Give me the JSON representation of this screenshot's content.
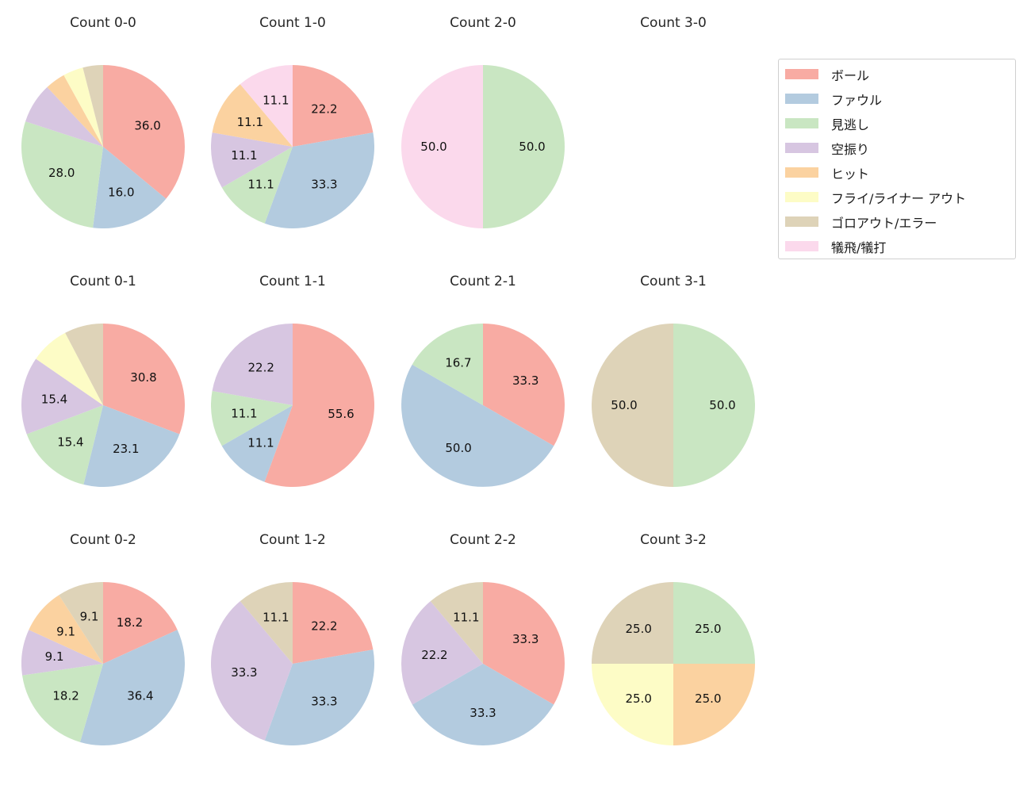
{
  "figure": {
    "background": "#ffffff"
  },
  "legend": {
    "position": "top-right",
    "items": [
      {
        "label": "ボール",
        "color": "#f8aba3"
      },
      {
        "label": "ファウル",
        "color": "#b3cbdf"
      },
      {
        "label": "見逃し",
        "color": "#c9e6c2"
      },
      {
        "label": "空振り",
        "color": "#d7c6e1"
      },
      {
        "label": "ヒット",
        "color": "#fbd2a0"
      },
      {
        "label": "フライ/ライナー アウト",
        "color": "#fdfcc6"
      },
      {
        "label": "ゴロアウト/エラー",
        "color": "#ded3b8"
      },
      {
        "label": "犠飛/犠打",
        "color": "#fbd9ec"
      }
    ]
  },
  "chart_data": [
    {
      "type": "pie",
      "title": "Count 0-0",
      "start_angle_deg": 90,
      "direction": "clockwise",
      "value_format": "percent",
      "slices": [
        {
          "category": "ボール",
          "value": 36.0,
          "label": "36.0",
          "color": "#f8aba3"
        },
        {
          "category": "ファウル",
          "value": 16.0,
          "label": "16.0",
          "color": "#b3cbdf"
        },
        {
          "category": "見逃し",
          "value": 28.0,
          "label": "28.0",
          "color": "#c9e6c2"
        },
        {
          "category": "空振り",
          "value": 8.0,
          "label": null,
          "color": "#d7c6e1"
        },
        {
          "category": "ヒット",
          "value": 4.0,
          "label": null,
          "color": "#fbd2a0"
        },
        {
          "category": "フライ/ライナー アウト",
          "value": 4.0,
          "label": null,
          "color": "#fdfcc6"
        },
        {
          "category": "ゴロアウト/エラー",
          "value": 4.0,
          "label": null,
          "color": "#ded3b8"
        }
      ]
    },
    {
      "type": "pie",
      "title": "Count 1-0",
      "start_angle_deg": 90,
      "direction": "clockwise",
      "value_format": "percent",
      "slices": [
        {
          "category": "ボール",
          "value": 22.2,
          "label": "22.2",
          "color": "#f8aba3"
        },
        {
          "category": "ファウル",
          "value": 33.3,
          "label": "33.3",
          "color": "#b3cbdf"
        },
        {
          "category": "見逃し",
          "value": 11.1,
          "label": "11.1",
          "color": "#c9e6c2"
        },
        {
          "category": "空振り",
          "value": 11.1,
          "label": "11.1",
          "color": "#d7c6e1"
        },
        {
          "category": "ヒット",
          "value": 11.1,
          "label": "11.1",
          "color": "#fbd2a0"
        },
        {
          "category": "犠飛/犠打",
          "value": 11.1,
          "label": "11.1",
          "color": "#fbd9ec"
        }
      ]
    },
    {
      "type": "pie",
      "title": "Count 2-0",
      "start_angle_deg": 90,
      "direction": "clockwise",
      "value_format": "percent",
      "slices": [
        {
          "category": "見逃し",
          "value": 50.0,
          "label": "50.0",
          "color": "#c9e6c2"
        },
        {
          "category": "犠飛/犠打",
          "value": 50.0,
          "label": "50.0",
          "color": "#fbd9ec"
        }
      ]
    },
    {
      "type": "pie",
      "title": "Count 3-0",
      "start_angle_deg": 90,
      "direction": "clockwise",
      "value_format": "percent",
      "slices": []
    },
    {
      "type": "pie",
      "title": "Count 0-1",
      "start_angle_deg": 90,
      "direction": "clockwise",
      "value_format": "percent",
      "slices": [
        {
          "category": "ボール",
          "value": 30.8,
          "label": "30.8",
          "color": "#f8aba3"
        },
        {
          "category": "ファウル",
          "value": 23.1,
          "label": "23.1",
          "color": "#b3cbdf"
        },
        {
          "category": "見逃し",
          "value": 15.4,
          "label": "15.4",
          "color": "#c9e6c2"
        },
        {
          "category": "空振り",
          "value": 15.4,
          "label": "15.4",
          "color": "#d7c6e1"
        },
        {
          "category": "フライ/ライナー アウト",
          "value": 7.7,
          "label": null,
          "color": "#fdfcc6"
        },
        {
          "category": "ゴロアウト/エラー",
          "value": 7.7,
          "label": null,
          "color": "#ded3b8"
        }
      ]
    },
    {
      "type": "pie",
      "title": "Count 1-1",
      "start_angle_deg": 90,
      "direction": "clockwise",
      "value_format": "percent",
      "slices": [
        {
          "category": "ボール",
          "value": 55.6,
          "label": "55.6",
          "color": "#f8aba3"
        },
        {
          "category": "ファウル",
          "value": 11.1,
          "label": "11.1",
          "color": "#b3cbdf"
        },
        {
          "category": "見逃し",
          "value": 11.1,
          "label": "11.1",
          "color": "#c9e6c2"
        },
        {
          "category": "空振り",
          "value": 22.2,
          "label": "22.2",
          "color": "#d7c6e1"
        }
      ]
    },
    {
      "type": "pie",
      "title": "Count 2-1",
      "start_angle_deg": 90,
      "direction": "clockwise",
      "value_format": "percent",
      "slices": [
        {
          "category": "ボール",
          "value": 33.3,
          "label": "33.3",
          "color": "#f8aba3"
        },
        {
          "category": "ファウル",
          "value": 50.0,
          "label": "50.0",
          "color": "#b3cbdf"
        },
        {
          "category": "見逃し",
          "value": 16.7,
          "label": "16.7",
          "color": "#c9e6c2"
        }
      ]
    },
    {
      "type": "pie",
      "title": "Count 3-1",
      "start_angle_deg": 90,
      "direction": "clockwise",
      "value_format": "percent",
      "slices": [
        {
          "category": "見逃し",
          "value": 50.0,
          "label": "50.0",
          "color": "#c9e6c2"
        },
        {
          "category": "ゴロアウト/エラー",
          "value": 50.0,
          "label": "50.0",
          "color": "#ded3b8"
        }
      ]
    },
    {
      "type": "pie",
      "title": "Count 0-2",
      "start_angle_deg": 90,
      "direction": "clockwise",
      "value_format": "percent",
      "slices": [
        {
          "category": "ボール",
          "value": 18.2,
          "label": "18.2",
          "color": "#f8aba3"
        },
        {
          "category": "ファウル",
          "value": 36.4,
          "label": "36.4",
          "color": "#b3cbdf"
        },
        {
          "category": "見逃し",
          "value": 18.2,
          "label": "18.2",
          "color": "#c9e6c2"
        },
        {
          "category": "空振り",
          "value": 9.1,
          "label": "9.1",
          "color": "#d7c6e1"
        },
        {
          "category": "ヒット",
          "value": 9.1,
          "label": "9.1",
          "color": "#fbd2a0"
        },
        {
          "category": "ゴロアウト/エラー",
          "value": 9.1,
          "label": "9.1",
          "color": "#ded3b8"
        }
      ]
    },
    {
      "type": "pie",
      "title": "Count 1-2",
      "start_angle_deg": 90,
      "direction": "clockwise",
      "value_format": "percent",
      "slices": [
        {
          "category": "ボール",
          "value": 22.2,
          "label": "22.2",
          "color": "#f8aba3"
        },
        {
          "category": "ファウル",
          "value": 33.3,
          "label": "33.3",
          "color": "#b3cbdf"
        },
        {
          "category": "空振り",
          "value": 33.3,
          "label": "33.3",
          "color": "#d7c6e1"
        },
        {
          "category": "ゴロアウト/エラー",
          "value": 11.1,
          "label": "11.1",
          "color": "#ded3b8"
        }
      ]
    },
    {
      "type": "pie",
      "title": "Count 2-2",
      "start_angle_deg": 90,
      "direction": "clockwise",
      "value_format": "percent",
      "slices": [
        {
          "category": "ボール",
          "value": 33.3,
          "label": "33.3",
          "color": "#f8aba3"
        },
        {
          "category": "ファウル",
          "value": 33.3,
          "label": "33.3",
          "color": "#b3cbdf"
        },
        {
          "category": "空振り",
          "value": 22.2,
          "label": "22.2",
          "color": "#d7c6e1"
        },
        {
          "category": "ゴロアウト/エラー",
          "value": 11.1,
          "label": "11.1",
          "color": "#ded3b8"
        }
      ]
    },
    {
      "type": "pie",
      "title": "Count 3-2",
      "start_angle_deg": 90,
      "direction": "clockwise",
      "value_format": "percent",
      "slices": [
        {
          "category": "見逃し",
          "value": 25.0,
          "label": "25.0",
          "color": "#c9e6c2"
        },
        {
          "category": "ヒット",
          "value": 25.0,
          "label": "25.0",
          "color": "#fbd2a0"
        },
        {
          "category": "フライ/ライナー アウト",
          "value": 25.0,
          "label": "25.0",
          "color": "#fdfcc6"
        },
        {
          "category": "ゴロアウト/エラー",
          "value": 25.0,
          "label": "25.0",
          "color": "#ded3b8"
        }
      ]
    }
  ]
}
